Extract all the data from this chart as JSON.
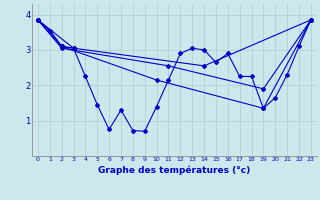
{
  "xlabel": "Graphe des températures (°c)",
  "background_color": "#cce8ec",
  "line_color": "#0000cc",
  "grid_color": "#aacccc",
  "xlim": [
    -0.5,
    23.5
  ],
  "ylim": [
    0,
    4.3
  ],
  "yticks": [
    1,
    2,
    3,
    4
  ],
  "xticks": [
    0,
    1,
    2,
    3,
    4,
    5,
    6,
    7,
    8,
    9,
    10,
    11,
    12,
    13,
    14,
    15,
    16,
    17,
    18,
    19,
    20,
    21,
    22,
    23
  ],
  "series": [
    {
      "x": [
        0,
        1,
        2,
        3
      ],
      "y": [
        3.85,
        3.55,
        3.1,
        3.05
      ]
    },
    {
      "x": [
        0,
        1,
        2,
        3,
        4,
        5,
        6,
        7,
        8,
        9,
        10,
        11,
        12,
        13,
        14,
        15,
        16,
        17,
        18,
        19,
        20,
        21,
        22,
        23
      ],
      "y": [
        3.85,
        3.55,
        3.1,
        3.05,
        2.25,
        1.45,
        0.75,
        1.3,
        0.72,
        0.7,
        1.4,
        2.15,
        2.9,
        3.05,
        3.0,
        2.65,
        2.9,
        2.25,
        2.25,
        1.35,
        1.65,
        2.3,
        3.1,
        3.85
      ]
    },
    {
      "x": [
        0,
        3,
        14,
        23
      ],
      "y": [
        3.85,
        3.05,
        2.55,
        3.85
      ]
    },
    {
      "x": [
        0,
        2,
        10,
        19,
        23
      ],
      "y": [
        3.85,
        3.1,
        2.15,
        1.35,
        3.85
      ]
    },
    {
      "x": [
        0,
        2,
        11,
        19,
        23
      ],
      "y": [
        3.85,
        3.05,
        2.55,
        1.9,
        3.85
      ]
    }
  ]
}
